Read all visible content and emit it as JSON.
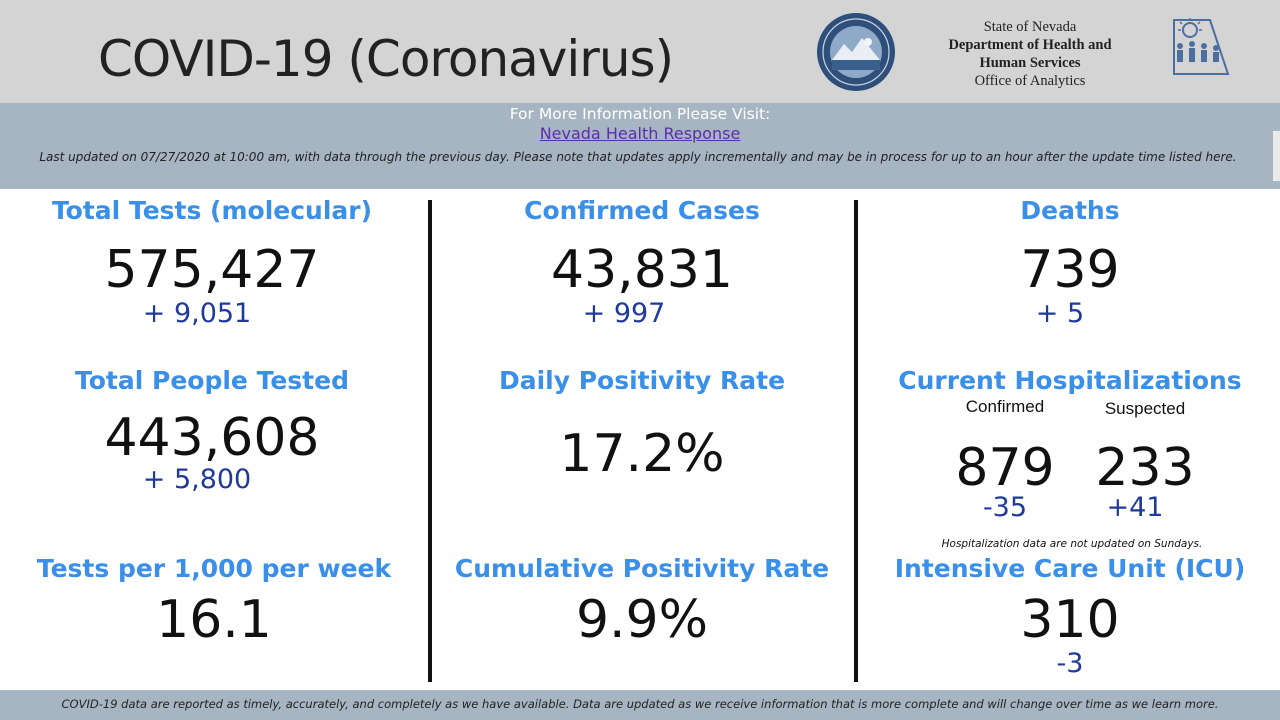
{
  "header": {
    "title": "COVID-19 (Coronavirus)",
    "agency": {
      "line1": "State of Nevada",
      "line2": "Department of Health and",
      "line3": "Human Services",
      "line4": "Office of Analytics"
    },
    "seal_icon": "nevada-state-seal",
    "logo_icon": "dhhs-logo",
    "bg_color": "#d4d4d4"
  },
  "info": {
    "line1": "For More Information Please Visit:",
    "link_text": "Nevada Health Response",
    "updated": "Last updated on 07/27/2020 at 10:00 am, with data through the previous day.  Please note that updates apply incrementally and may be in process for up to an hour after the update time listed here.",
    "bg_color": "#a7b4c1"
  },
  "colors": {
    "label": "#3a8fe8",
    "delta": "#1f3a9a",
    "value": "#111111"
  },
  "metrics": {
    "total_tests": {
      "label": "Total Tests (molecular)",
      "value": "575,427",
      "delta": "+  9,051"
    },
    "confirmed_cases": {
      "label": "Confirmed Cases",
      "value": "43,831",
      "delta": "+  997"
    },
    "deaths": {
      "label": "Deaths",
      "value": "739",
      "delta": "+ 5"
    },
    "people_tested": {
      "label": "Total People Tested",
      "value": "443,608",
      "delta": "+  5,800"
    },
    "daily_positivity": {
      "label": "Daily Positivity Rate",
      "value": "17.2%"
    },
    "hospitalizations": {
      "label": "Current Hospitalizations",
      "confirmed_label": "Confirmed",
      "suspected_label": "Suspected",
      "confirmed_value": "879",
      "suspected_value": "233",
      "confirmed_delta": "-35",
      "suspected_delta": "+41",
      "note": "Hospitalization data are not updated on Sundays."
    },
    "tests_per_1000": {
      "label": "Tests per 1,000 per week",
      "value": "16.1"
    },
    "cumulative_positivity": {
      "label": "Cumulative Positivity Rate",
      "value": "9.9%"
    },
    "icu": {
      "label": "Intensive Care Unit (ICU)",
      "value": "310",
      "delta": "-3"
    }
  },
  "footer": {
    "text": "COVID-19 data are reported as timely, accurately, and completely as we have available.  Data are updated as we receive information that is more complete and will change over time as we learn more."
  }
}
